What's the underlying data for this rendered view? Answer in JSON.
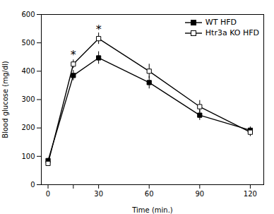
{
  "chart_data": {
    "type": "line",
    "x": [
      0,
      15,
      30,
      60,
      90,
      120
    ],
    "series": [
      {
        "name": "WT HFD",
        "color": "#000000",
        "marker": "square",
        "values": [
          85,
          385,
          447,
          360,
          245,
          192
        ],
        "errors": [
          8,
          18,
          22,
          22,
          18,
          12
        ]
      },
      {
        "name": "Htr3a KO HFD",
        "color": "#000000",
        "marker": "open_square",
        "values": [
          75,
          425,
          515,
          400,
          275,
          185
        ],
        "errors": [
          10,
          15,
          20,
          25,
          22,
          15
        ]
      }
    ],
    "xlabel": "Time (min.)",
    "ylabel": "Blood glucose (mg/dl)",
    "xlim": [
      -4,
      128
    ],
    "xticks": [
      0,
      {
        "value": 15,
        "label": ""
      },
      30,
      60,
      90,
      120
    ],
    "ylim": [
      0,
      600
    ],
    "yticks": [
      0,
      100,
      200,
      300,
      400,
      500,
      600
    ],
    "annotations": [
      {
        "x": 15,
        "y": 445,
        "text": "*"
      },
      {
        "x": 30,
        "y": 535,
        "text": "*"
      }
    ],
    "legend": "upper right"
  }
}
